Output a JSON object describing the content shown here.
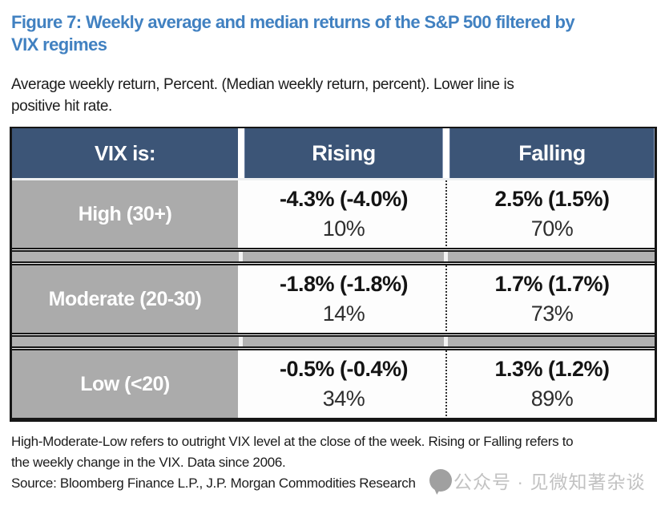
{
  "title": {
    "line1": "Figure 7: Weekly average and median returns of the S&P 500 filtered by",
    "line2": "VIX regimes"
  },
  "subtitle": {
    "line1": "Average weekly return, Percent. (Median weekly return, percent). Lower line is",
    "line2": "positive hit rate."
  },
  "table": {
    "header": {
      "col0": "VIX is:",
      "col1": "Rising",
      "col2": "Falling"
    },
    "rows": [
      {
        "label": "High (30+)",
        "rising_return": "-4.3% (-4.0%)",
        "rising_hit": "10%",
        "falling_return": "2.5% (1.5%)",
        "falling_hit": "70%"
      },
      {
        "label": "Moderate (20-30)",
        "rising_return": "-1.8% (-1.8%)",
        "rising_hit": "14%",
        "falling_return": "1.7% (1.7%)",
        "falling_hit": "73%"
      },
      {
        "label": "Low (<20)",
        "rising_return": "-0.5% (-0.4%)",
        "rising_hit": "34%",
        "falling_return": "1.3% (1.2%)",
        "falling_hit": "89%"
      }
    ]
  },
  "footnote": {
    "line1": "High-Moderate-Low refers to outright VIX level at the close of the week. Rising or Falling refers to",
    "line2": "the weekly change in the VIX. Data since 2006."
  },
  "source": "Source: Bloomberg Finance L.P., J.P. Morgan Commodities Research",
  "watermark": {
    "icon": "chat-bubble-icon",
    "text": "公众号 · 见微知著杂谈"
  },
  "colors": {
    "title_blue": "#4181c1",
    "header_blue": "#3c5577",
    "label_gray": "#ababab",
    "separator_band_gray": "#b1b1b1",
    "watermark_gray": "#c2c2c2",
    "value_text": "#141414"
  },
  "chart_data": {
    "type": "table",
    "title": "Figure 7: Weekly average and median returns of the S&P 500 filtered by VIX regimes",
    "subtitle": "Average weekly return, Percent. (Median weekly return, percent). Lower line is positive hit rate.",
    "columns": [
      "VIX is:",
      "Rising",
      "Falling"
    ],
    "rows": [
      {
        "vix_level": "High (30+)",
        "rising": {
          "avg_return_pct": -4.3,
          "median_return_pct": -4.0,
          "positive_hit_rate_pct": 10
        },
        "falling": {
          "avg_return_pct": 2.5,
          "median_return_pct": 1.5,
          "positive_hit_rate_pct": 70
        }
      },
      {
        "vix_level": "Moderate (20-30)",
        "rising": {
          "avg_return_pct": -1.8,
          "median_return_pct": -1.8,
          "positive_hit_rate_pct": 14
        },
        "falling": {
          "avg_return_pct": 1.7,
          "median_return_pct": 1.7,
          "positive_hit_rate_pct": 73
        }
      },
      {
        "vix_level": "Low (<20)",
        "rising": {
          "avg_return_pct": -0.5,
          "median_return_pct": -0.4,
          "positive_hit_rate_pct": 34
        },
        "falling": {
          "avg_return_pct": 1.3,
          "median_return_pct": 1.2,
          "positive_hit_rate_pct": 89
        }
      }
    ],
    "footnote": "High-Moderate-Low refers to outright VIX level at the close of the week. Rising or Falling refers to the weekly change in the VIX. Data since 2006.",
    "source": "Source: Bloomberg Finance L.P., J.P. Morgan Commodities Research"
  }
}
